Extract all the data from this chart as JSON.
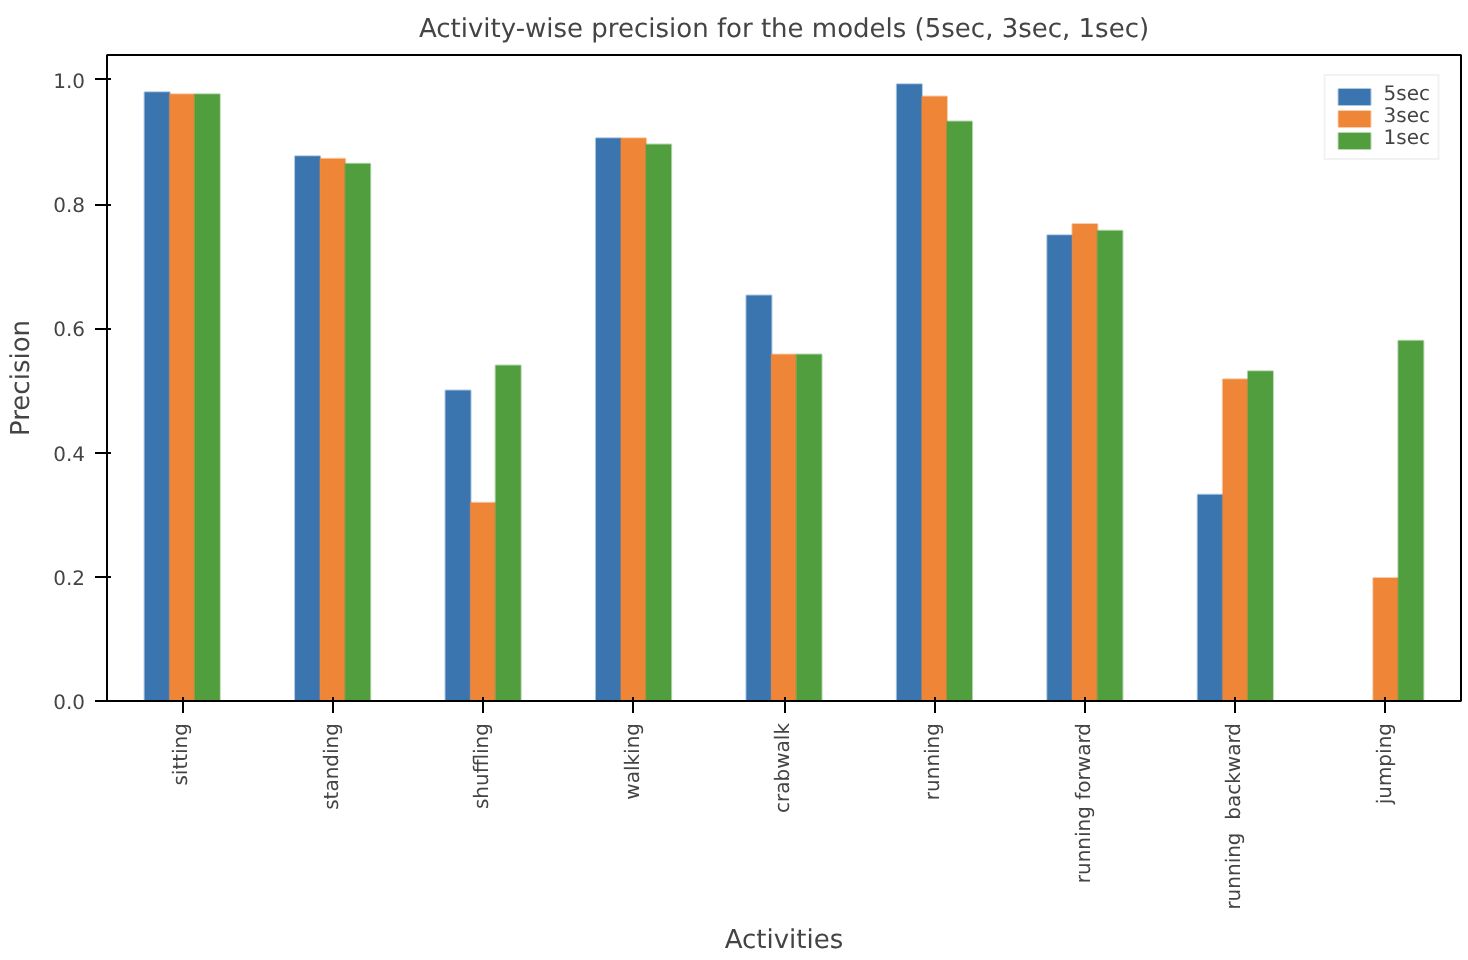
{
  "chart_data": {
    "type": "bar",
    "title": "Activity-wise precision for the models (5sec, 3sec, 1sec)",
    "xlabel": "Activities",
    "ylabel": "Precision",
    "categories": [
      "sitting",
      "standing",
      "shuffling",
      "walking",
      "crabwalk",
      "running",
      "running forward",
      "running  backward",
      "jumping"
    ],
    "series": [
      {
        "name": "5sec",
        "color": "#3a75af",
        "values": [
          0.98,
          0.877,
          0.5,
          0.906,
          0.653,
          0.993,
          0.75,
          0.332,
          0
        ]
      },
      {
        "name": "3sec",
        "color": "#ef8536",
        "values": [
          0.977,
          0.873,
          0.319,
          0.906,
          0.558,
          0.973,
          0.768,
          0.518,
          0.198
        ]
      },
      {
        "name": "1sec",
        "color": "#519e3e",
        "values": [
          0.977,
          0.865,
          0.54,
          0.896,
          0.558,
          0.933,
          0.757,
          0.531,
          0.58
        ]
      }
    ],
    "ylim": [
      0,
      1.04
    ],
    "yticks": [
      {
        "value": 0,
        "label": "0.0"
      },
      0.2,
      0.4,
      0.6,
      0.8,
      {
        "value": 1,
        "label": "1.0"
      }
    ],
    "grid": false,
    "legend": "top right"
  }
}
